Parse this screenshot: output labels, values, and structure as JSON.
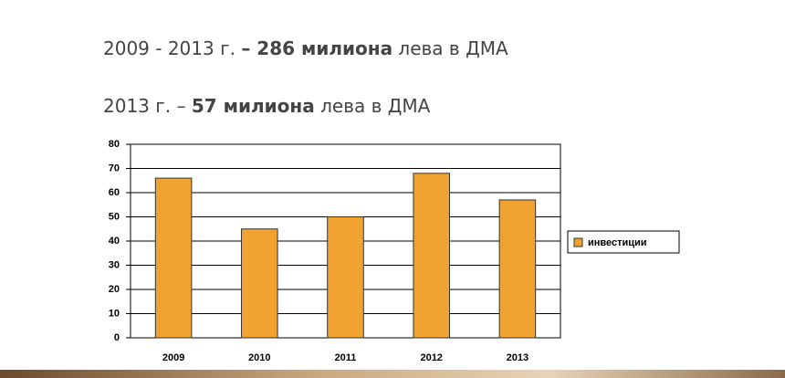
{
  "text_lines": [
    [
      "2009 - 2013 г. ",
      "– 286 милиона",
      " лева в ДМА"
    ],
    [
      "2013 г. – ",
      "57 милиона",
      " лева в ДМА"
    ]
  ],
  "chart_data": {
    "type": "bar",
    "categories": [
      "2009",
      "2010",
      "2011",
      "2012",
      "2013"
    ],
    "series": [
      {
        "name": "инвестиции",
        "color": "#f0a330",
        "values": [
          66,
          45,
          50,
          68,
          57
        ]
      }
    ],
    "ylim": [
      0,
      80
    ],
    "yticks": [
      0,
      10,
      20,
      30,
      40,
      50,
      60,
      70,
      80
    ],
    "grid": true,
    "legend": "right"
  }
}
